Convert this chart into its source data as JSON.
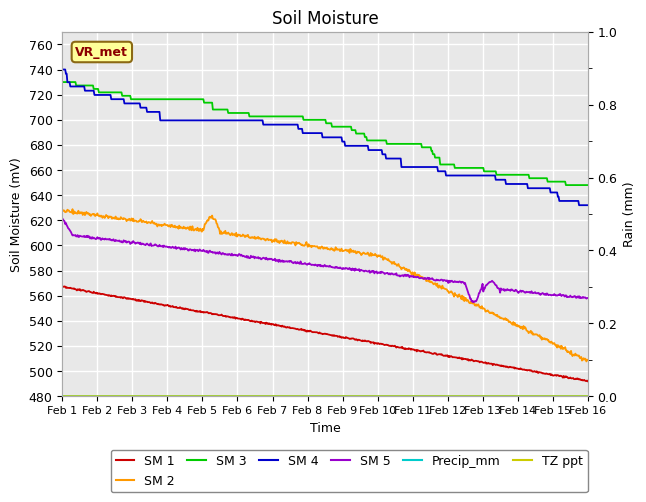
{
  "title": "Soil Moisture",
  "xlabel": "Time",
  "ylabel_left": "Soil Moisture (mV)",
  "ylabel_right": "Rain (mm)",
  "xlim": [
    0,
    15
  ],
  "ylim_left": [
    480,
    770
  ],
  "ylim_right": [
    0.0,
    1.0
  ],
  "xtick_labels": [
    "Feb 1",
    "Feb 2",
    "Feb 3",
    "Feb 4",
    "Feb 5",
    "Feb 6",
    "Feb 7",
    "Feb 8",
    "Feb 9",
    "Feb 10",
    "Feb 11",
    "Feb 12",
    "Feb 13",
    "Feb 14",
    "Feb 15",
    "Feb 16"
  ],
  "ytick_left": [
    480,
    500,
    520,
    540,
    560,
    580,
    600,
    620,
    640,
    660,
    680,
    700,
    720,
    740,
    760
  ],
  "ytick_right": [
    0.0,
    0.2,
    0.4,
    0.6,
    0.8,
    1.0
  ],
  "background_color": "#e8e8e8",
  "grid_color": "#ffffff",
  "annotation_text": "VR_met",
  "annotation_box_color": "#ffff99",
  "annotation_box_edge": "#8B6914",
  "colors": {
    "SM 1": "#cc0000",
    "SM 2": "#ff9900",
    "SM 3": "#00cc00",
    "SM 4": "#0000cc",
    "SM 5": "#9900cc",
    "Precip_mm": "#00cccc",
    "TZ ppt": "#cccc00"
  },
  "legend_order": [
    "SM 1",
    "SM 2",
    "SM 3",
    "SM 4",
    "SM 5",
    "Precip_mm",
    "TZ ppt"
  ]
}
